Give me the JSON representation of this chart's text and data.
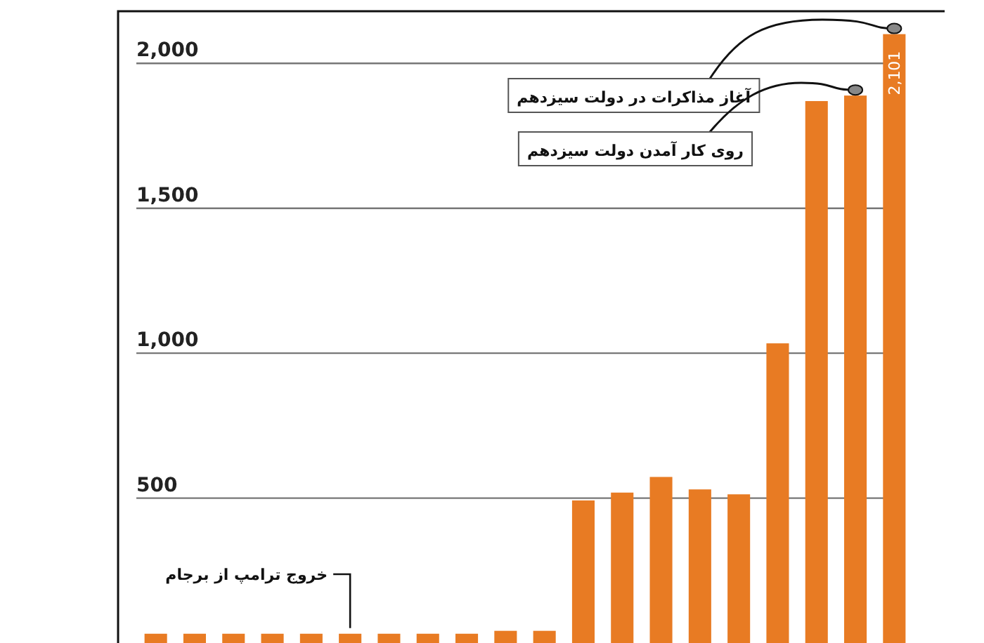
{
  "chart_data": {
    "type": "bar",
    "categories": [
      null,
      null,
      null,
      null,
      null,
      null,
      null,
      null,
      null,
      null,
      null,
      null,
      null,
      null,
      null,
      null,
      null,
      null,
      null,
      null
    ],
    "values": [
      32,
      32,
      32,
      32,
      32,
      32,
      32,
      32,
      32,
      42,
      42,
      492,
      519,
      573,
      530,
      513,
      1034,
      1870,
      1889,
      2101
    ],
    "color": "#e87b23",
    "value_labels": [
      null,
      null,
      null,
      null,
      null,
      null,
      null,
      null,
      null,
      null,
      null,
      null,
      null,
      null,
      null,
      null,
      null,
      null,
      null,
      "2,101"
    ],
    "ylim": [
      0,
      2180
    ],
    "yticks": [
      {
        "value": 500,
        "label": "500"
      },
      {
        "value": 1000,
        "label": "1,000"
      },
      {
        "value": 1500,
        "label": "1,500"
      },
      {
        "value": 2000,
        "label": "2,000"
      }
    ],
    "grid": "y",
    "annotations": [
      "آغاز مذاکرات در دولت سیزدهم",
      "روی کار آمدن دولت سیزدهم",
      "خروج ترامپ از برجام"
    ]
  }
}
